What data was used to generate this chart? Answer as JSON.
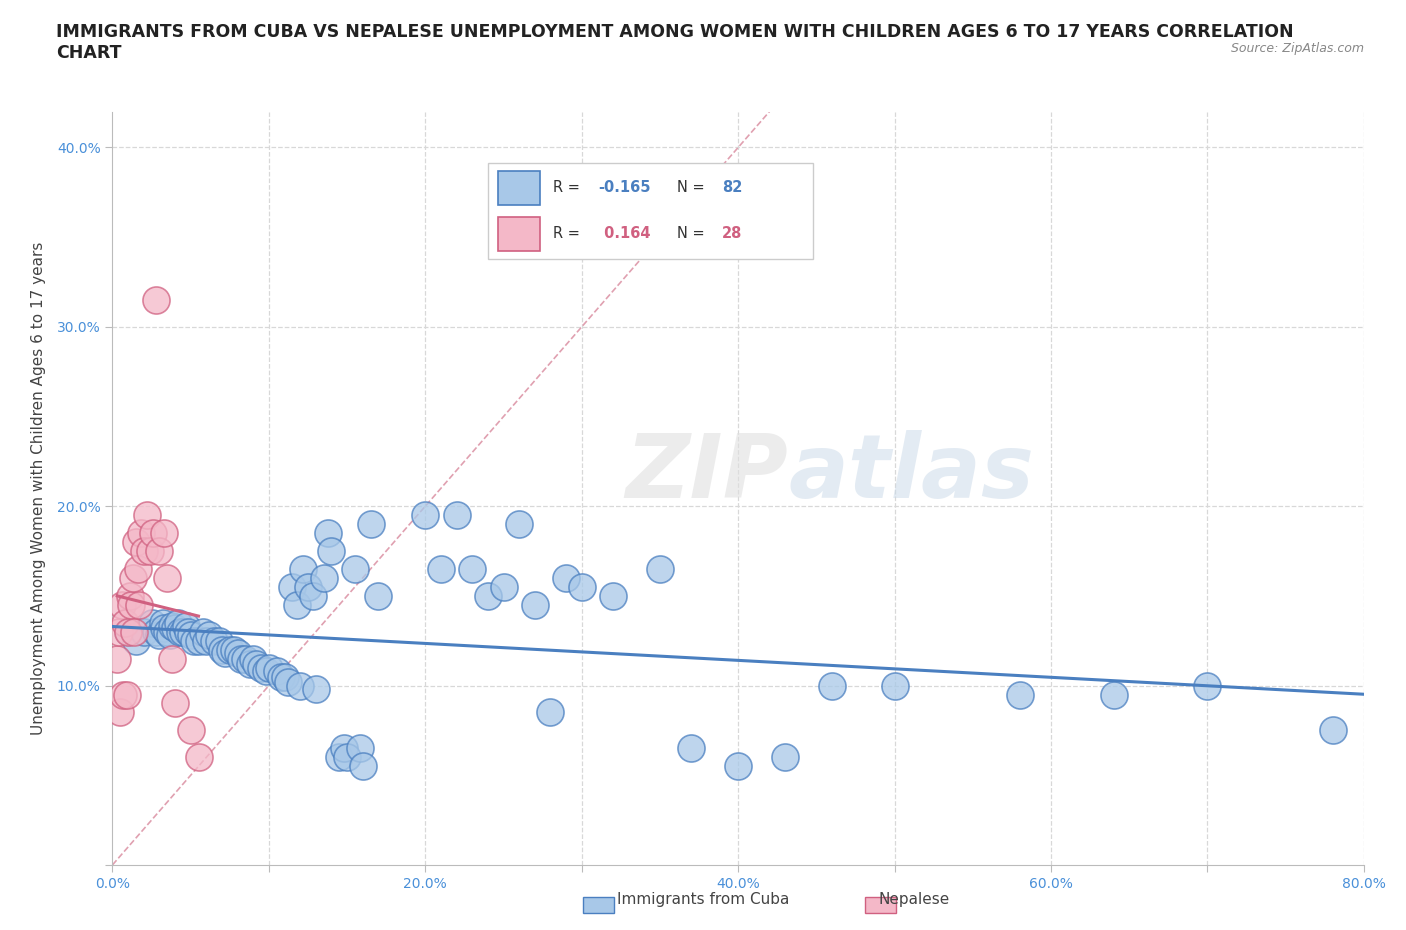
{
  "title": "IMMIGRANTS FROM CUBA VS NEPALESE UNEMPLOYMENT AMONG WOMEN WITH CHILDREN AGES 6 TO 17 YEARS CORRELATION\nCHART",
  "source_text": "Source: ZipAtlas.com",
  "xlabel": "",
  "ylabel": "Unemployment Among Women with Children Ages 6 to 17 years",
  "xlim": [
    0.0,
    0.8
  ],
  "ylim": [
    0.0,
    0.42
  ],
  "xticks": [
    0.0,
    0.1,
    0.2,
    0.3,
    0.4,
    0.5,
    0.6,
    0.7,
    0.8
  ],
  "yticks": [
    0.0,
    0.1,
    0.2,
    0.3,
    0.4
  ],
  "xticklabels": [
    "0.0%",
    "",
    "20.0%",
    "",
    "40.0%",
    "",
    "60.0%",
    "",
    "80.0%"
  ],
  "yticklabels": [
    "",
    "10.0%",
    "20.0%",
    "30.0%",
    "40.0%"
  ],
  "legend_labels": [
    "Immigrants from Cuba",
    "Nepalese"
  ],
  "color_cuba": "#a8c8e8",
  "color_nepalese": "#f4b8c8",
  "trendline_color_cuba": "#4a7fc0",
  "trendline_color_nepalese": "#d06080",
  "diagonal_color": "#e0a0b0",
  "r_cuba": -0.165,
  "n_cuba": 82,
  "r_nepalese": 0.164,
  "n_nepalese": 28,
  "background_color": "#ffffff",
  "grid_color": "#d8d8d8",
  "cuba_x": [
    0.01,
    0.015,
    0.02,
    0.025,
    0.028,
    0.03,
    0.032,
    0.033,
    0.035,
    0.037,
    0.038,
    0.04,
    0.042,
    0.043,
    0.045,
    0.047,
    0.048,
    0.05,
    0.052,
    0.055,
    0.058,
    0.06,
    0.062,
    0.065,
    0.068,
    0.07,
    0.072,
    0.075,
    0.078,
    0.08,
    0.082,
    0.085,
    0.088,
    0.09,
    0.092,
    0.095,
    0.098,
    0.1,
    0.105,
    0.108,
    0.11,
    0.112,
    0.115,
    0.118,
    0.12,
    0.122,
    0.125,
    0.128,
    0.13,
    0.135,
    0.138,
    0.14,
    0.145,
    0.148,
    0.15,
    0.155,
    0.158,
    0.16,
    0.165,
    0.17,
    0.2,
    0.21,
    0.22,
    0.23,
    0.24,
    0.25,
    0.26,
    0.27,
    0.28,
    0.29,
    0.3,
    0.32,
    0.35,
    0.37,
    0.4,
    0.43,
    0.46,
    0.5,
    0.58,
    0.64,
    0.7,
    0.78
  ],
  "cuba_y": [
    0.13,
    0.125,
    0.13,
    0.135,
    0.13,
    0.128,
    0.135,
    0.132,
    0.13,
    0.128,
    0.133,
    0.132,
    0.135,
    0.13,
    0.13,
    0.133,
    0.13,
    0.128,
    0.125,
    0.125,
    0.13,
    0.125,
    0.128,
    0.125,
    0.125,
    0.12,
    0.118,
    0.12,
    0.12,
    0.118,
    0.115,
    0.115,
    0.112,
    0.115,
    0.112,
    0.11,
    0.108,
    0.11,
    0.108,
    0.105,
    0.105,
    0.102,
    0.155,
    0.145,
    0.1,
    0.165,
    0.155,
    0.15,
    0.098,
    0.16,
    0.185,
    0.175,
    0.06,
    0.065,
    0.06,
    0.165,
    0.065,
    0.055,
    0.19,
    0.15,
    0.195,
    0.165,
    0.195,
    0.165,
    0.15,
    0.155,
    0.19,
    0.145,
    0.085,
    0.16,
    0.155,
    0.15,
    0.165,
    0.065,
    0.055,
    0.06,
    0.1,
    0.1,
    0.095,
    0.095,
    0.1,
    0.075
  ],
  "nepalese_x": [
    0.003,
    0.004,
    0.005,
    0.006,
    0.007,
    0.008,
    0.009,
    0.01,
    0.011,
    0.012,
    0.013,
    0.014,
    0.015,
    0.016,
    0.017,
    0.018,
    0.02,
    0.022,
    0.024,
    0.026,
    0.028,
    0.03,
    0.033,
    0.035,
    0.038,
    0.04,
    0.05,
    0.055
  ],
  "nepalese_y": [
    0.115,
    0.13,
    0.085,
    0.145,
    0.095,
    0.135,
    0.095,
    0.13,
    0.15,
    0.145,
    0.16,
    0.13,
    0.18,
    0.165,
    0.145,
    0.185,
    0.175,
    0.195,
    0.175,
    0.185,
    0.315,
    0.175,
    0.185,
    0.16,
    0.115,
    0.09,
    0.075,
    0.06
  ]
}
